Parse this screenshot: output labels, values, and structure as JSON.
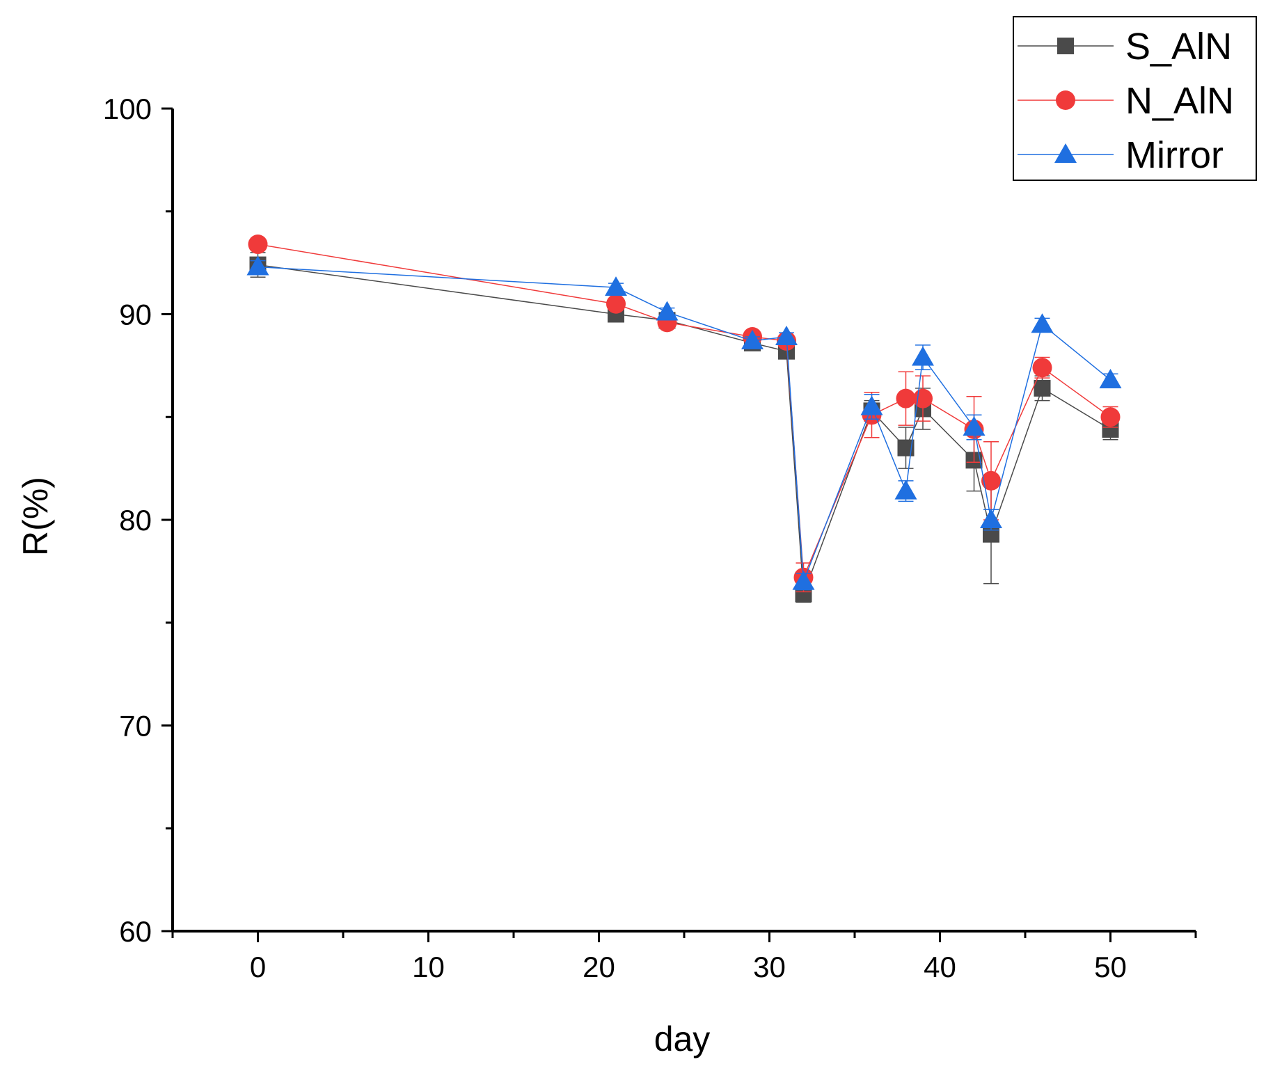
{
  "chart_data": {
    "type": "line",
    "title": "",
    "xlabel": "day",
    "ylabel": "R(%)",
    "xlim": [
      -5,
      55
    ],
    "ylim": [
      60,
      100
    ],
    "x_ticks": [
      0,
      10,
      20,
      30,
      40,
      50
    ],
    "x_minor_ticks": [
      -5,
      5,
      15,
      25,
      35,
      45,
      55
    ],
    "y_ticks": [
      60,
      70,
      80,
      90,
      100
    ],
    "y_minor_ticks": [
      65,
      75,
      85,
      95
    ],
    "grid": false,
    "legend_position": "top-right",
    "series": [
      {
        "name": "S_AlN",
        "color": "#4a4a4a",
        "marker": "square",
        "x": [
          0,
          21,
          24,
          29,
          31,
          32,
          36,
          38,
          39,
          42,
          43,
          46,
          50
        ],
        "y": [
          92.4,
          90.0,
          89.7,
          88.6,
          88.2,
          76.4,
          85.3,
          83.5,
          85.4,
          82.9,
          79.3,
          86.4,
          84.4
        ],
        "err": [
          0.6,
          0.2,
          0.2,
          0.2,
          0.3,
          0.4,
          0.5,
          1.0,
          1.0,
          1.5,
          2.4,
          0.6,
          0.5
        ]
      },
      {
        "name": "N_AlN",
        "color": "#f03a3a",
        "marker": "circle",
        "x": [
          0,
          21,
          24,
          29,
          31,
          32,
          36,
          38,
          39,
          42,
          43,
          46,
          50
        ],
        "y": [
          93.4,
          90.5,
          89.6,
          88.9,
          88.7,
          77.2,
          85.1,
          85.9,
          85.9,
          84.4,
          81.9,
          87.4,
          85.0
        ],
        "err": [
          0.2,
          0.2,
          0.2,
          0.2,
          0.2,
          0.7,
          1.1,
          1.3,
          1.1,
          1.6,
          1.9,
          0.5,
          0.5
        ]
      },
      {
        "name": "Mirror",
        "color": "#1f6fe0",
        "marker": "triangle",
        "x": [
          0,
          21,
          24,
          29,
          31,
          32,
          36,
          38,
          39,
          42,
          43,
          46,
          50
        ],
        "y": [
          92.3,
          91.3,
          90.1,
          88.7,
          88.9,
          77.0,
          85.5,
          81.4,
          87.9,
          84.5,
          80.0,
          89.5,
          86.8
        ],
        "err": [
          0.3,
          0.2,
          0.2,
          0.2,
          0.2,
          0.4,
          0.6,
          0.5,
          0.6,
          0.6,
          0.5,
          0.3,
          0.3
        ]
      }
    ]
  }
}
